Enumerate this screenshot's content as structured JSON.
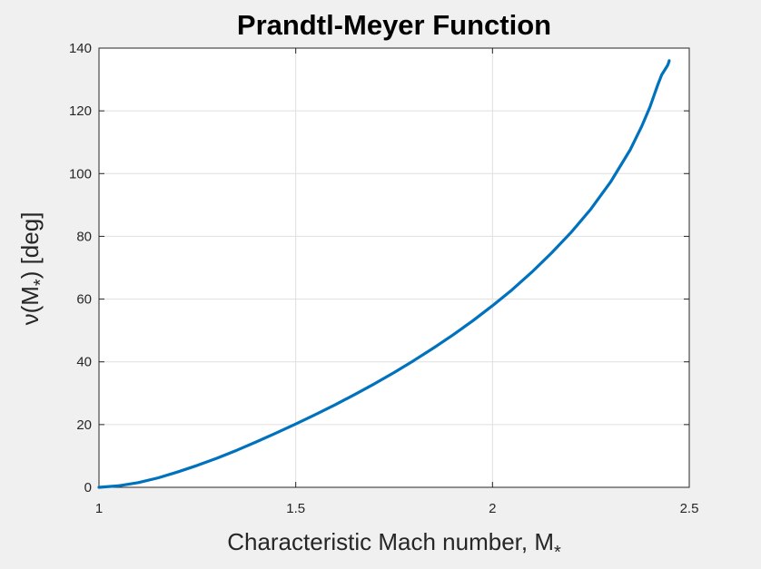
{
  "chart_data": {
    "type": "line",
    "title": "Prandtl-Meyer Function",
    "xlabel": {
      "base": "Characteristic Mach number, M",
      "sub": "*"
    },
    "ylabel": {
      "pre": "ν(M",
      "sub": "*",
      "post": ") [deg]"
    },
    "xlim": [
      1,
      2.5
    ],
    "ylim": [
      0,
      140
    ],
    "xticks": [
      1,
      1.5,
      2,
      2.5
    ],
    "xtick_labels": [
      "1",
      "1.5",
      "2",
      "2.5"
    ],
    "yticks": [
      0,
      20,
      40,
      60,
      80,
      100,
      120,
      140
    ],
    "ytick_labels": [
      "0",
      "20",
      "40",
      "60",
      "80",
      "100",
      "120",
      "140"
    ],
    "grid": true,
    "series": [
      {
        "color": "#0072bd",
        "x": [
          1.0,
          1.05,
          1.1,
          1.15,
          1.2,
          1.25,
          1.3,
          1.35,
          1.4,
          1.45,
          1.5,
          1.55,
          1.6,
          1.65,
          1.7,
          1.75,
          1.8,
          1.85,
          1.9,
          1.95,
          2.0,
          2.05,
          2.1,
          2.15,
          2.2,
          2.25,
          2.3,
          2.35,
          2.38,
          2.4,
          2.42,
          2.43,
          2.44,
          2.445,
          2.448,
          2.449
        ],
        "y": [
          0,
          0.5,
          1.5,
          3.0,
          4.9,
          7.0,
          9.3,
          11.8,
          14.5,
          17.3,
          20.2,
          23.2,
          26.3,
          29.6,
          33.0,
          36.6,
          40.4,
          44.4,
          48.6,
          53.1,
          57.9,
          63.0,
          68.6,
          74.7,
          81.3,
          88.7,
          97.3,
          107.6,
          115.3,
          121.2,
          128.3,
          131.5,
          133.5,
          134.5,
          135.5,
          136.0
        ]
      }
    ]
  }
}
